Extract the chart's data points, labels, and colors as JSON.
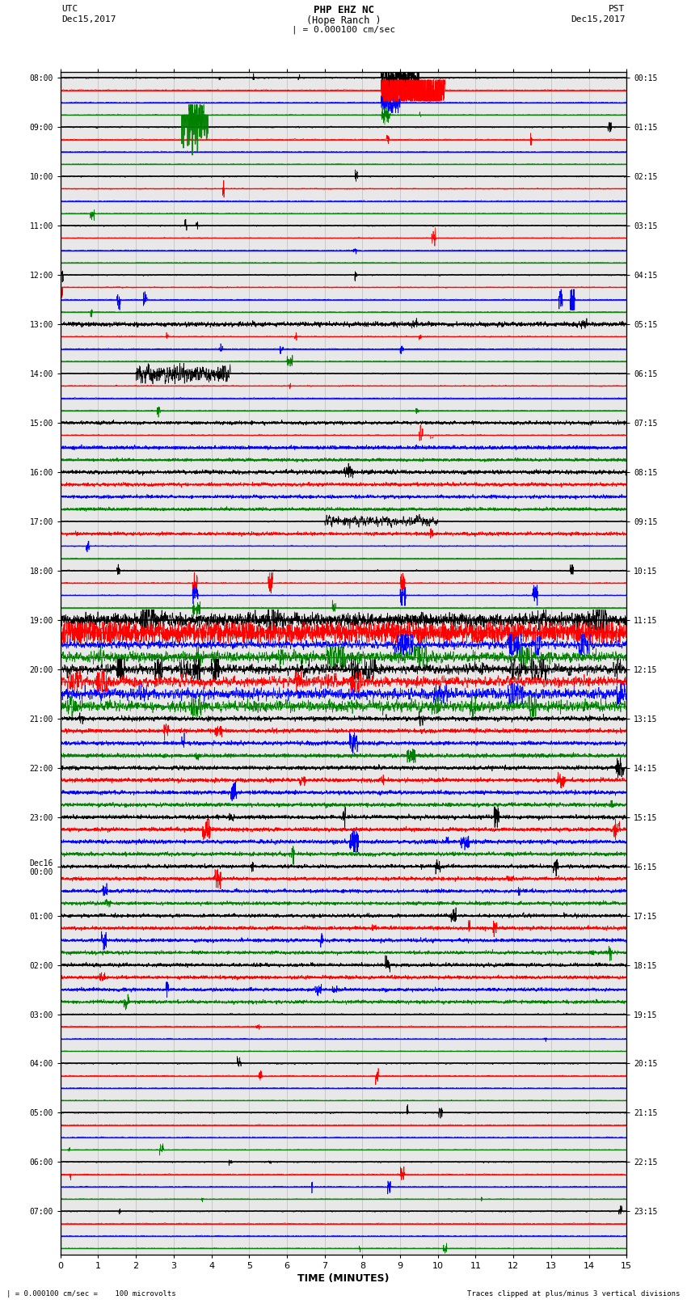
{
  "title_line1": "PHP EHZ NC",
  "title_line2": "(Hope Ranch )",
  "title_line3": "| = 0.000100 cm/sec",
  "left_label_line1": "UTC",
  "left_label_line2": "Dec15,2017",
  "right_label_line1": "PST",
  "right_label_line2": "Dec15,2017",
  "xlabel": "TIME (MINUTES)",
  "bottom_left": "| = 0.000100 cm/sec =    100 microvolts",
  "bottom_right": "Traces clipped at plus/minus 3 vertical divisions",
  "utc_hour_labels": [
    "08:00",
    "09:00",
    "10:00",
    "11:00",
    "12:00",
    "13:00",
    "14:00",
    "15:00",
    "16:00",
    "17:00",
    "18:00",
    "19:00",
    "20:00",
    "21:00",
    "22:00",
    "23:00",
    "Dec16\n00:00",
    "01:00",
    "02:00",
    "03:00",
    "04:00",
    "05:00",
    "06:00",
    "07:00"
  ],
  "pst_hour_labels": [
    "00:15",
    "01:15",
    "02:15",
    "03:15",
    "04:15",
    "05:15",
    "06:15",
    "07:15",
    "08:15",
    "09:15",
    "10:15",
    "11:15",
    "12:15",
    "13:15",
    "14:15",
    "15:15",
    "16:15",
    "17:15",
    "18:15",
    "19:15",
    "20:15",
    "21:15",
    "22:15",
    "23:15"
  ],
  "colors_cycle": [
    "black",
    "red",
    "blue",
    "green"
  ],
  "n_rows": 96,
  "bg_color": "white",
  "plot_bg": "#e8e8e8",
  "grid_color": "#aaaaaa",
  "time_range_min": 0,
  "time_range_max": 15,
  "rows_per_hour": 4,
  "n_hours": 24
}
